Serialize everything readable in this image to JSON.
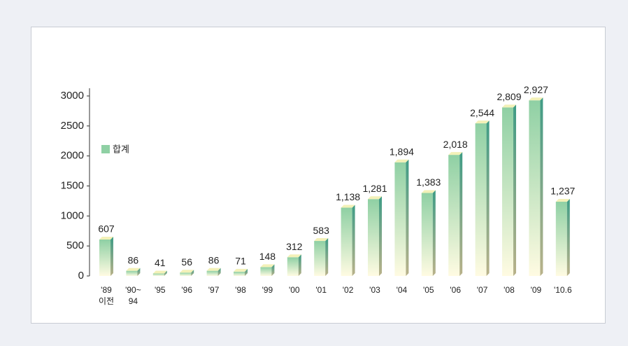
{
  "chart_data": {
    "type": "bar",
    "categories": [
      "'89\n이전",
      "'90~\n94",
      "'95",
      "'96",
      "'97",
      "'98",
      "'99",
      "'00",
      "'01",
      "'02",
      "'03",
      "'04",
      "'05",
      "'06",
      "'07",
      "'08",
      "'09",
      "'10.6"
    ],
    "series": [
      {
        "name": "합계",
        "color": "#8fd0a4",
        "values": [
          607,
          86,
          41,
          56,
          86,
          71,
          148,
          312,
          583,
          1138,
          1281,
          1894,
          1383,
          2018,
          2544,
          2809,
          2927,
          1237
        ],
        "value_labels": [
          "607",
          "86",
          "41",
          "56",
          "86",
          "71",
          "148",
          "312",
          "583",
          "1,138",
          "1,281",
          "1,894",
          "1,383",
          "2,018",
          "2,544",
          "2,809",
          "2,927",
          "1,237"
        ]
      }
    ],
    "ylim": [
      0,
      3000
    ],
    "yticks": [
      0,
      500,
      1000,
      1500,
      2000,
      2500,
      3000
    ]
  }
}
